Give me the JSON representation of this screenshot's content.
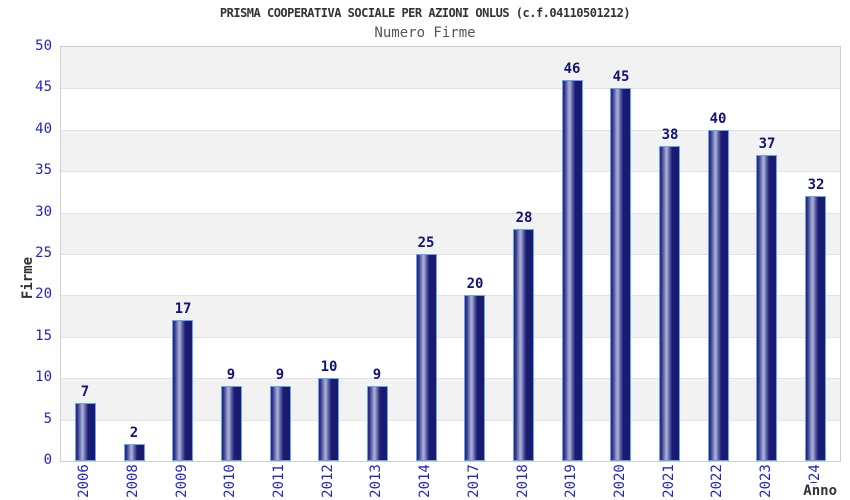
{
  "chart_data": {
    "type": "bar",
    "title": "PRISMA COOPERATIVA SOCIALE PER AZIONI ONLUS (c.f.04110501212)",
    "subtitle": "Numero Firme",
    "xlabel": "Anno",
    "ylabel": "Firme",
    "categories": [
      "2006",
      "2008",
      "2009",
      "2010",
      "2011",
      "2012",
      "2013",
      "2014",
      "2017",
      "2018",
      "2019",
      "2020",
      "2021",
      "2022",
      "2023",
      "2024"
    ],
    "values": [
      7,
      2,
      17,
      9,
      9,
      10,
      9,
      25,
      20,
      28,
      46,
      45,
      38,
      40,
      37,
      32
    ],
    "ylim": [
      0,
      50
    ],
    "ytick_step": 5,
    "grid": "horizontal-bands",
    "legend_position": "none",
    "colors": {
      "bar_dark": "#191970",
      "bar_highlight": "#9ba3d0",
      "bar_border": "#63a8e8",
      "tick_text": "#2323cc",
      "value_label_text": "#131375",
      "band_gray": "#f2f2f2",
      "band_white": "#ffffff",
      "grid_line": "#e3e3e3",
      "plot_border": "#cfcfcf",
      "title_text": "#333333",
      "subtitle_text": "#555555"
    }
  }
}
